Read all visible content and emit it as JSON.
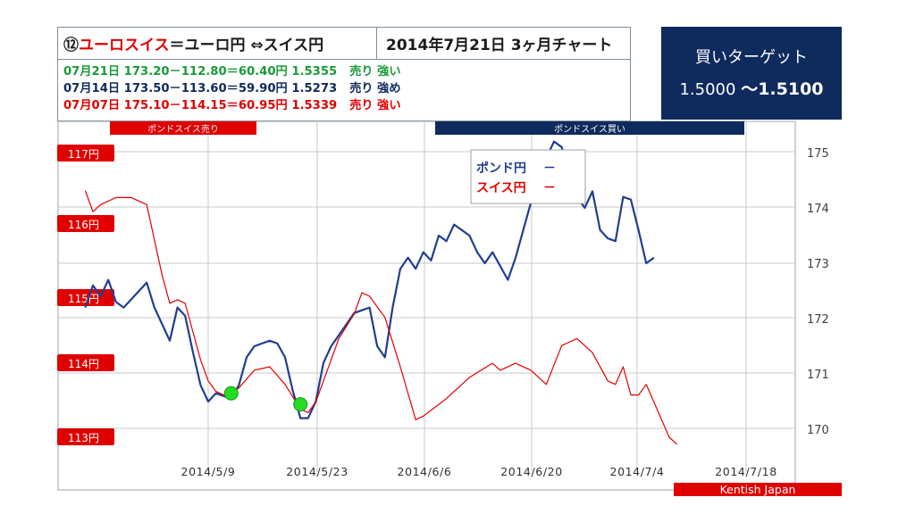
{
  "header": {
    "title_mark": "⑫",
    "title_red": "ユーロスイス",
    "title_rest": "＝ユーロ円 ⇔スイス円",
    "date_title": "2014年7月21日 3ヶ月チャート",
    "lines": [
      {
        "color": "#1a9a3a",
        "text": "07月21日 173.20－112.80＝60.40円 1.5355",
        "signal": "売り 強い"
      },
      {
        "color": "#0f2a5c",
        "text": "07月14日 173.50－113.60＝59.90円 1.5273",
        "signal": "売り 強め"
      },
      {
        "color": "#e00000",
        "text": "07月07日 175.10－114.15＝60.95円 1.5339",
        "signal": "売り 強い"
      }
    ]
  },
  "target": {
    "label": "買いターゲット",
    "low": "1.5000 ",
    "high": "～1.5100"
  },
  "chart_data": {
    "type": "line",
    "x_ticks": [
      "2014/5/9",
      "2014/5/23",
      "2014/6/6",
      "2014/6/20",
      "2014/7/4",
      "2014/7/18"
    ],
    "left_axis": {
      "ticks": [
        "117円",
        "116円",
        "115円",
        "114円",
        "113円"
      ],
      "values": [
        117,
        116,
        115,
        114,
        113
      ]
    },
    "right_axis": {
      "ticks": [
        "175",
        "174",
        "173",
        "172",
        "171",
        "170"
      ],
      "values": [
        175,
        174,
        173,
        172,
        171,
        170
      ]
    },
    "grid": true,
    "legend": {
      "placement": "top-center",
      "items": [
        {
          "name": "ポンド円",
          "mark": "－",
          "color": "#1f3f8f"
        },
        {
          "name": "スイス円",
          "mark": "－",
          "color": "#e00000"
        }
      ]
    },
    "zones": [
      {
        "label": "ポンドスイス売り",
        "color": "#e00000"
      },
      {
        "label": "ポンドスイス買い",
        "color": "#0f2a5c"
      }
    ],
    "footer": "Kentish Japan",
    "series": [
      {
        "name": "ポンド円",
        "color": "#1f3f8f",
        "axis": "right",
        "points": [
          [
            "2014-04-23",
            172.2
          ],
          [
            "2014-04-24",
            172.6
          ],
          [
            "2014-04-25",
            172.4
          ],
          [
            "2014-04-26",
            172.7
          ],
          [
            "2014-04-27",
            172.3
          ],
          [
            "2014-04-28",
            172.2
          ],
          [
            "2014-04-30",
            172.5
          ],
          [
            "2014-05-01",
            172.65
          ],
          [
            "2014-05-02",
            172.2
          ],
          [
            "2014-05-03",
            171.9
          ],
          [
            "2014-05-04",
            171.6
          ],
          [
            "2014-05-05",
            172.2
          ],
          [
            "2014-05-06",
            172.05
          ],
          [
            "2014-05-07",
            171.4
          ],
          [
            "2014-05-08",
            170.8
          ],
          [
            "2014-05-09",
            170.5
          ],
          [
            "2014-05-10",
            170.65
          ],
          [
            "2014-05-11",
            170.6
          ],
          [
            "2014-05-12",
            170.55
          ],
          [
            "2014-05-13",
            170.8
          ],
          [
            "2014-05-14",
            171.3
          ],
          [
            "2014-05-15",
            171.5
          ],
          [
            "2014-05-16",
            171.55
          ],
          [
            "2014-05-17",
            171.6
          ],
          [
            "2014-05-18",
            171.55
          ],
          [
            "2014-05-19",
            171.3
          ],
          [
            "2014-05-20",
            170.7
          ],
          [
            "2014-05-21",
            170.2
          ],
          [
            "2014-05-22",
            170.2
          ],
          [
            "2014-05-23",
            170.5
          ],
          [
            "2014-05-24",
            171.2
          ],
          [
            "2014-05-25",
            171.5
          ],
          [
            "2014-05-27",
            171.9
          ],
          [
            "2014-05-28",
            172.1
          ],
          [
            "2014-05-29",
            172.15
          ],
          [
            "2014-05-30",
            172.2
          ],
          [
            "2014-05-31",
            171.5
          ],
          [
            "2014-06-01",
            171.3
          ],
          [
            "2014-06-02",
            172.2
          ],
          [
            "2014-06-03",
            172.9
          ],
          [
            "2014-06-04",
            173.1
          ],
          [
            "2014-06-05",
            172.9
          ],
          [
            "2014-06-06",
            173.2
          ],
          [
            "2014-06-07",
            173.05
          ],
          [
            "2014-06-08",
            173.5
          ],
          [
            "2014-06-09",
            173.4
          ],
          [
            "2014-06-10",
            173.7
          ],
          [
            "2014-06-11",
            173.6
          ],
          [
            "2014-06-12",
            173.5
          ],
          [
            "2014-06-13",
            173.2
          ],
          [
            "2014-06-14",
            173.0
          ],
          [
            "2014-06-15",
            173.2
          ],
          [
            "2014-06-17",
            172.7
          ],
          [
            "2014-06-18",
            173.1
          ],
          [
            "2014-06-19",
            173.6
          ],
          [
            "2014-06-20",
            174.1
          ],
          [
            "2014-06-21",
            174.6
          ],
          [
            "2014-06-22",
            174.9
          ],
          [
            "2014-06-23",
            175.2
          ],
          [
            "2014-06-24",
            175.1
          ],
          [
            "2014-06-25",
            174.5
          ],
          [
            "2014-06-26",
            174.2
          ],
          [
            "2014-06-27",
            174.0
          ],
          [
            "2014-06-28",
            174.3
          ],
          [
            "2014-06-29",
            173.6
          ],
          [
            "2014-06-30",
            173.45
          ],
          [
            "2014-07-01",
            173.4
          ],
          [
            "2014-07-02",
            174.2
          ],
          [
            "2014-07-03",
            174.15
          ],
          [
            "2014-07-04",
            173.6
          ],
          [
            "2014-07-05",
            173.0
          ],
          [
            "2014-07-06",
            173.1
          ]
        ]
      },
      {
        "name": "スイス円",
        "color": "#e00000",
        "axis": "left",
        "points": [
          [
            "2014-04-23",
            116.5
          ],
          [
            "2014-04-24",
            116.2
          ],
          [
            "2014-04-25",
            116.3
          ],
          [
            "2014-04-27",
            116.4
          ],
          [
            "2014-04-29",
            116.4
          ],
          [
            "2014-05-01",
            116.3
          ],
          [
            "2014-05-02",
            115.8
          ],
          [
            "2014-05-03",
            115.3
          ],
          [
            "2014-05-04",
            114.9
          ],
          [
            "2014-05-05",
            114.95
          ],
          [
            "2014-05-06",
            114.9
          ],
          [
            "2014-05-07",
            114.5
          ],
          [
            "2014-05-08",
            114.1
          ],
          [
            "2014-05-09",
            113.8
          ],
          [
            "2014-05-10",
            113.65
          ],
          [
            "2014-05-11",
            113.6
          ],
          [
            "2014-05-12",
            113.62
          ],
          [
            "2014-05-13",
            113.7
          ],
          [
            "2014-05-15",
            113.95
          ],
          [
            "2014-05-17",
            114.0
          ],
          [
            "2014-05-19",
            113.75
          ],
          [
            "2014-05-21",
            113.4
          ],
          [
            "2014-05-22",
            113.35
          ],
          [
            "2014-05-23",
            113.5
          ],
          [
            "2014-05-24",
            113.8
          ],
          [
            "2014-05-26",
            114.4
          ],
          [
            "2014-05-28",
            114.75
          ],
          [
            "2014-05-29",
            115.05
          ],
          [
            "2014-05-30",
            115.0
          ],
          [
            "2014-06-01",
            114.7
          ],
          [
            "2014-06-03",
            114.0
          ],
          [
            "2014-06-05",
            113.25
          ],
          [
            "2014-06-06",
            113.3
          ],
          [
            "2014-06-09",
            113.55
          ],
          [
            "2014-06-12",
            113.85
          ],
          [
            "2014-06-15",
            114.05
          ],
          [
            "2014-06-16",
            113.95
          ],
          [
            "2014-06-18",
            114.05
          ],
          [
            "2014-06-20",
            113.95
          ],
          [
            "2014-06-22",
            113.75
          ],
          [
            "2014-06-24",
            114.3
          ],
          [
            "2014-06-26",
            114.4
          ],
          [
            "2014-06-28",
            114.2
          ],
          [
            "2014-06-30",
            113.8
          ],
          [
            "2014-07-01",
            113.75
          ],
          [
            "2014-07-02",
            114.0
          ],
          [
            "2014-07-03",
            113.6
          ],
          [
            "2014-07-04",
            113.6
          ],
          [
            "2014-07-05",
            113.75
          ],
          [
            "2014-07-06",
            113.5
          ],
          [
            "2014-07-08",
            113.0
          ],
          [
            "2014-07-09",
            112.9
          ]
        ]
      }
    ],
    "markers": [
      {
        "date": "2014-05-12",
        "value": 170.65,
        "axis": "right",
        "color": "#22dd22"
      },
      {
        "date": "2014-05-21",
        "value": 170.45,
        "axis": "right",
        "color": "#22dd22"
      }
    ]
  }
}
